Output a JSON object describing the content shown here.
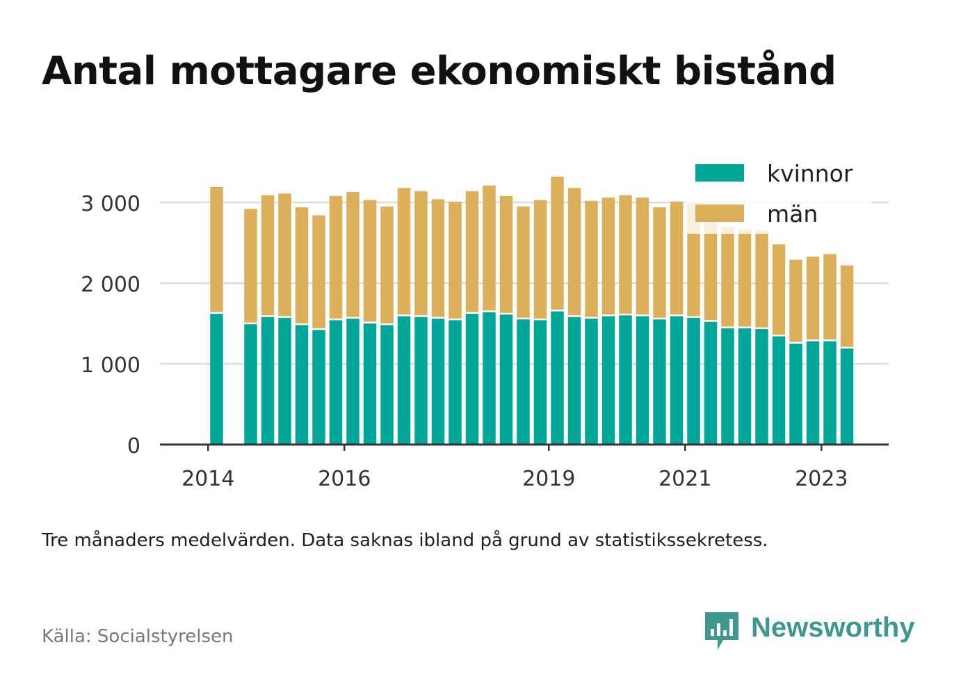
{
  "title": "Antal mottagare ekonomiskt bistånd",
  "note": "Tre månaders medelvärden. Data saknas ibland på grund av statistikssekretess.",
  "source": "Källa: Socialstyrelsen",
  "brand": "Newsworthy",
  "colors": {
    "kvinnor": "#00a698",
    "man": "#dcb05a",
    "brand": "#3f9890",
    "grid": "#dddddd",
    "axis": "#333333"
  },
  "chart_data": {
    "type": "bar",
    "stacked": true,
    "series": [
      {
        "name": "kvinnor",
        "values": [
          1620,
          null,
          1490,
          1580,
          1570,
          1480,
          1420,
          1540,
          1560,
          1500,
          1480,
          1590,
          1580,
          1560,
          1540,
          1620,
          1640,
          1610,
          1550,
          1540,
          1650,
          1580,
          1560,
          1590,
          1600,
          1590,
          1550,
          1590,
          1570,
          1520,
          1440,
          1440,
          1430,
          1340,
          1250,
          1280,
          1280,
          1190
        ]
      },
      {
        "name": "män",
        "values": [
          1570,
          null,
          1430,
          1510,
          1540,
          1460,
          1420,
          1540,
          1570,
          1530,
          1470,
          1590,
          1560,
          1480,
          1470,
          1520,
          1570,
          1470,
          1400,
          1490,
          1670,
          1600,
          1460,
          1470,
          1490,
          1470,
          1390,
          1420,
          1420,
          1230,
          1250,
          1230,
          1220,
          1140,
          1040,
          1050,
          1080,
          1030
        ]
      }
    ],
    "x_tick_labels": [
      {
        "label": "2014",
        "index": -0.5
      },
      {
        "label": "2016",
        "index": 7.5
      },
      {
        "label": "2019",
        "index": 19.5
      },
      {
        "label": "2021",
        "index": 27.5
      },
      {
        "label": "2023",
        "index": 35.5
      }
    ],
    "y_ticks": [
      {
        "value": 0,
        "label": "0"
      },
      {
        "value": 1000,
        "label": "1 000"
      },
      {
        "value": 2000,
        "label": "2 000"
      },
      {
        "value": 3000,
        "label": "3 000"
      }
    ],
    "ylim": [
      0,
      3000
    ],
    "grid": true,
    "legend_position": "top-right",
    "legend": [
      "kvinnor",
      "män"
    ]
  }
}
